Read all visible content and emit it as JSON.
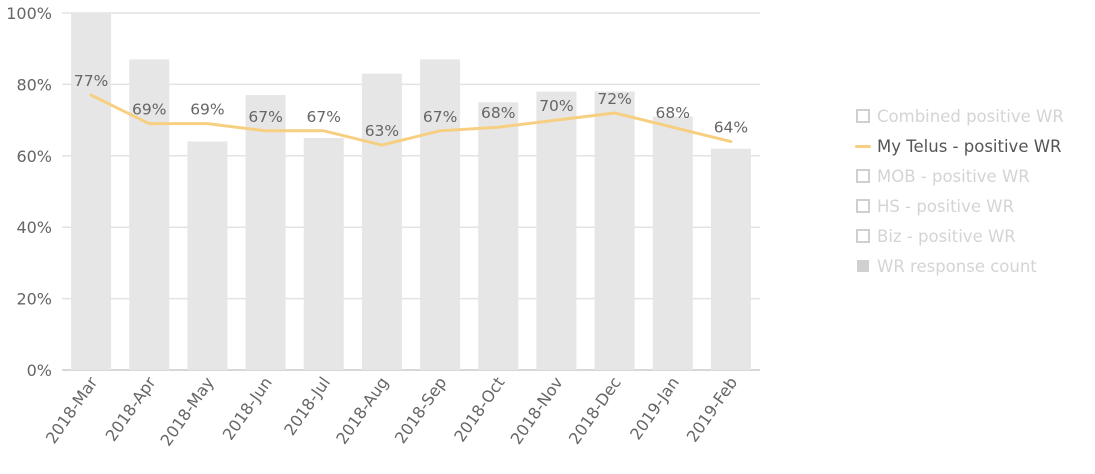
{
  "chart_data": {
    "type": "bar",
    "categories": [
      "2018-Mar",
      "2018-Apr",
      "2018-May",
      "2018-Jun",
      "2018-Jul",
      "2018-Aug",
      "2018-Sep",
      "2018-Oct",
      "2018-Nov",
      "2018-Dec",
      "2019-Jan",
      "2019-Feb"
    ],
    "series": [
      {
        "name": "WR response count",
        "kind": "bar",
        "values_pct_of_axis": [
          100,
          87,
          64,
          77,
          65,
          83,
          87,
          75,
          78,
          78,
          71,
          62
        ],
        "color": "#e6e6e6"
      },
      {
        "name": "My Telus - positive WR",
        "kind": "line",
        "values": [
          77,
          69,
          69,
          67,
          67,
          63,
          67,
          68,
          70,
          72,
          68,
          64
        ],
        "labels": [
          "77%",
          "69%",
          "69%",
          "67%",
          "67%",
          "63%",
          "67%",
          "68%",
          "70%",
          "72%",
          "68%",
          "64%"
        ],
        "color": "#f7cf81"
      }
    ],
    "yticks": [
      "0%",
      "20%",
      "40%",
      "60%",
      "80%",
      "100%"
    ],
    "ylim": [
      0,
      100
    ],
    "grid": true,
    "legend_position": "right"
  },
  "legend": [
    {
      "label": "Combined positive WR",
      "symbol": "box",
      "active": false
    },
    {
      "label": "My Telus - positive WR",
      "symbol": "line",
      "active": true
    },
    {
      "label": "MOB - positive WR",
      "symbol": "box",
      "active": false
    },
    {
      "label": "HS - positive WR",
      "symbol": "box",
      "active": false
    },
    {
      "label": "Biz - positive WR",
      "symbol": "box",
      "active": false
    },
    {
      "label": "WR response count",
      "symbol": "filled",
      "active": false
    }
  ]
}
